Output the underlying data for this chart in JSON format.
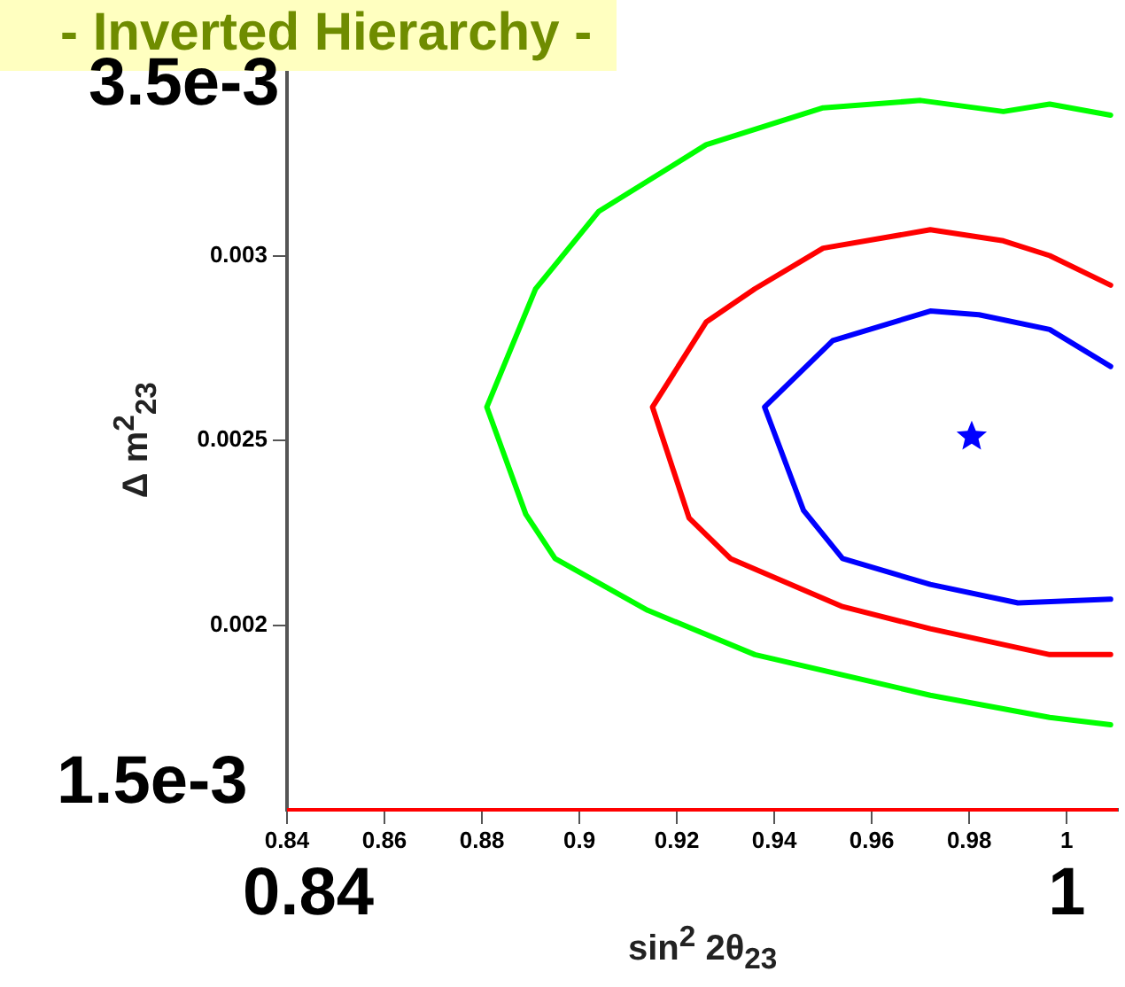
{
  "chart_data": {
    "type": "line",
    "title": "- Inverted Hierarchy -",
    "xlabel": "sin$^{2}$ 2θ$_{23}$",
    "ylabel": "Δ m$^{2}$$_{23}$",
    "xlim": [
      0.84,
      1.0105
    ],
    "xticks": [
      0.84,
      0.86,
      0.88,
      0.9,
      0.92,
      0.94,
      0.96,
      0.98,
      1
    ],
    "ylim": [
      0.0015,
      0.0035
    ],
    "yticks": [
      0.002,
      0.0025,
      0.003
    ],
    "marker": "none",
    "legend": false,
    "annotations": [
      "3.5e-3",
      "1.5e-3",
      "0.84",
      "1"
    ],
    "ref_lines": [
      {
        "axis": "y",
        "value": 0.0015,
        "color": "#ff0000"
      }
    ],
    "series": [
      {
        "color": "#00ff00",
        "x": [
          1.009,
          0.9965,
          0.987,
          0.97,
          0.95,
          0.926,
          0.904,
          0.891,
          0.881,
          0.889,
          0.895,
          0.914,
          0.936,
          0.972,
          0.9965,
          1.009
        ],
        "values": [
          0.00338,
          0.00341,
          0.00339,
          0.00342,
          0.0034,
          0.0033,
          0.00312,
          0.00291,
          0.00259,
          0.0023,
          0.00218,
          0.00204,
          0.00192,
          0.00181,
          0.00175,
          0.00173
        ]
      },
      {
        "color": "#ff0000",
        "x": [
          1.009,
          0.9965,
          0.987,
          0.972,
          0.95,
          0.936,
          0.926,
          0.915,
          0.919,
          0.9225,
          0.931,
          0.954,
          0.972,
          0.9965,
          1.009
        ],
        "values": [
          0.00292,
          0.003,
          0.00304,
          0.00307,
          0.00302,
          0.00291,
          0.00282,
          0.00259,
          0.00243,
          0.00229,
          0.00218,
          0.00205,
          0.00199,
          0.00192,
          0.00192
        ]
      },
      {
        "color": "#0000ff",
        "x": [
          1.009,
          0.9965,
          0.982,
          0.972,
          0.952,
          0.938,
          0.946,
          0.954,
          0.972,
          0.99,
          1.009
        ],
        "values": [
          0.0027,
          0.0028,
          0.00284,
          0.00285,
          0.00277,
          0.00259,
          0.00231,
          0.00218,
          0.00211,
          0.00206,
          0.00207
        ]
      },
      {
        "type": "scatter",
        "marker": "star",
        "color": "#0000ff",
        "x": [
          0.9805
        ],
        "values": [
          0.00251
        ]
      }
    ]
  }
}
